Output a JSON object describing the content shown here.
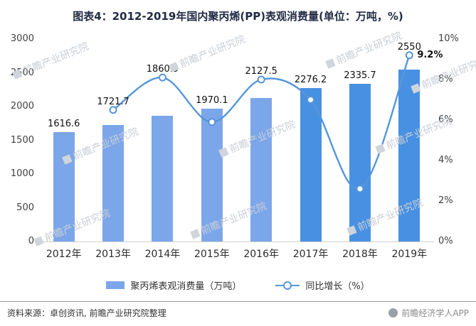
{
  "chart_data": {
    "type": "bar+line",
    "title": "图表4：2012-2019年国内聚丙烯(PP)表观消费量(单位：万吨，%)",
    "categories": [
      "2012年",
      "2013年",
      "2014年",
      "2015年",
      "2016年",
      "2017年",
      "2018年",
      "2019年"
    ],
    "series": [
      {
        "name": "聚丙烯表观消费量（万吨）",
        "type": "bar",
        "values": [
          1616.6,
          1721.7,
          1860.9,
          1970.1,
          2127.5,
          2276.2,
          2335.7,
          2550
        ],
        "labels": [
          "1616.6",
          "1721.7",
          "1860.9",
          "1970.1",
          "2127.5",
          "2276.2",
          "2335.7",
          "2550"
        ],
        "colors": [
          "#7CA6EA",
          "#7CA6EA",
          "#7CA6EA",
          "#7CA6EA",
          "#7CA6EA",
          "#4890E2",
          "#4890E2",
          "#4890E2"
        ]
      },
      {
        "name": "同比增长（%）",
        "type": "line",
        "color": "#5596D8",
        "values": [
          null,
          6.5,
          8.1,
          5.9,
          8.0,
          7.0,
          2.6,
          9.2
        ],
        "point_label": {
          "index": 7,
          "text": "9.2%"
        }
      }
    ],
    "left_axis": {
      "min": 0,
      "max": 3000,
      "ticks": [
        "3000",
        "2500",
        "2000",
        "1500",
        "1000",
        "500",
        "0"
      ]
    },
    "right_axis": {
      "min": 0,
      "max": 10,
      "ticks": [
        "10%",
        "8%",
        "6%",
        "4%",
        "2%",
        "0%"
      ]
    },
    "legend_position": "bottom",
    "grid": false
  },
  "footer": {
    "source": "资料来源：卓创资讯, 前瞻产业研究院整理",
    "credit": "前瞻经济学人APP"
  },
  "watermark": {
    "text": "前瞻产业研究院"
  }
}
